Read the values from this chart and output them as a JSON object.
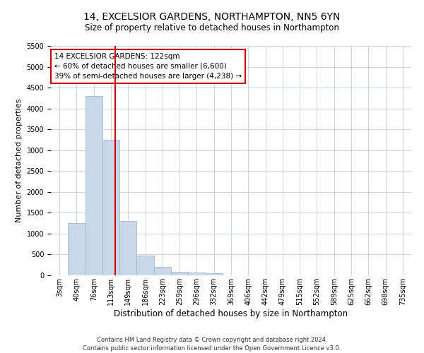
{
  "title_line1": "14, EXCELSIOR GARDENS, NORTHAMPTON, NN5 6YN",
  "title_line2": "Size of property relative to detached houses in Northampton",
  "xlabel": "Distribution of detached houses by size in Northampton",
  "ylabel": "Number of detached properties",
  "annotation_line1": "14 EXCELSIOR GARDENS: 122sqm",
  "annotation_line2": "← 60% of detached houses are smaller (6,600)",
  "annotation_line3": "39% of semi-detached houses are larger (4,238) →",
  "footer_line1": "Contains HM Land Registry data © Crown copyright and database right 2024.",
  "footer_line2": "Contains public sector information licensed under the Open Government Licence v3.0.",
  "bar_color": "#c8d8e8",
  "bar_edge_color": "#a0b8d0",
  "grid_color": "#c8d4e4",
  "vline_color": "#cc0000",
  "annotation_box_color": "#cc0000",
  "bin_labels": [
    "3sqm",
    "40sqm",
    "76sqm",
    "113sqm",
    "149sqm",
    "186sqm",
    "223sqm",
    "259sqm",
    "296sqm",
    "332sqm",
    "369sqm",
    "406sqm",
    "442sqm",
    "479sqm",
    "515sqm",
    "552sqm",
    "589sqm",
    "625sqm",
    "662sqm",
    "698sqm",
    "735sqm"
  ],
  "bar_values": [
    0,
    1250,
    4300,
    3250,
    1300,
    480,
    200,
    90,
    60,
    50,
    0,
    0,
    0,
    0,
    0,
    0,
    0,
    0,
    0,
    0,
    0
  ],
  "ylim": [
    0,
    5500
  ],
  "yticks": [
    0,
    500,
    1000,
    1500,
    2000,
    2500,
    3000,
    3500,
    4000,
    4500,
    5000,
    5500
  ],
  "vline_x": 2.25,
  "background_color": "#ffffff",
  "title_fontsize": 10,
  "subtitle_fontsize": 8.5,
  "ylabel_fontsize": 8,
  "xlabel_fontsize": 8.5,
  "tick_fontsize": 7,
  "footer_fontsize": 6,
  "annotation_fontsize": 7.5
}
